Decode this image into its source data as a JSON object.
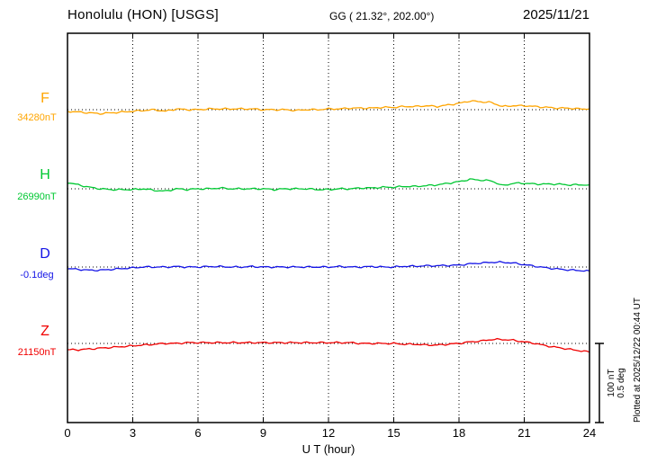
{
  "chart_data": {
    "type": "line",
    "title": "Honolulu (HON)  [USGS]",
    "subtitle": "GG ( 21.32°, 202.00°)",
    "date": "2025/11/21",
    "xlabel": "U T (hour)",
    "ylabel": "",
    "x_range": [
      0,
      24
    ],
    "x_ticks": [
      "0",
      "3",
      "6",
      "9",
      "12",
      "15",
      "18",
      "21",
      "24"
    ],
    "grid": "dotted vertical at 3h intervals, dotted horizontal at each trace baseline",
    "x_step_hours": 0.5,
    "scale": {
      "nT_per_div": 100,
      "deg_per_div": 0.5,
      "label_nT": "100 nT",
      "label_deg": "0.5 deg"
    },
    "plotted_at": "Plotted at 2025/12/22 00:44 UT",
    "series": [
      {
        "name": "F",
        "baseline_label": "34280nT",
        "baseline_value": 34280,
        "unit": "nT",
        "color": "#ffa500",
        "offsets": [
          -2,
          -3,
          -4,
          -5,
          -4,
          -3,
          -2,
          -1,
          0,
          -2,
          1,
          0,
          0,
          1,
          1,
          1,
          1,
          1,
          0,
          0,
          0,
          -1,
          0,
          0,
          1,
          1,
          2,
          2,
          2,
          3,
          3,
          4,
          4,
          5,
          4,
          6,
          8,
          11,
          10,
          9,
          4,
          5,
          5,
          4,
          3,
          2,
          2,
          1,
          1
        ]
      },
      {
        "name": "H",
        "baseline_label": "26990nT",
        "baseline_value": 26990,
        "unit": "nT",
        "color": "#00c832",
        "offsets": [
          8,
          5,
          2,
          0,
          -1,
          -1,
          -1,
          0,
          -2,
          -3,
          0,
          -1,
          0,
          0,
          1,
          0,
          0,
          0,
          0,
          -1,
          0,
          0,
          0,
          -1,
          -1,
          0,
          0,
          1,
          1,
          2,
          2,
          3,
          3,
          4,
          5,
          7,
          9,
          12,
          11,
          10,
          4,
          7,
          7,
          6,
          6,
          6,
          5,
          5,
          5
        ]
      },
      {
        "name": "D",
        "baseline_label": "-0.1deg",
        "baseline_value": -0.1,
        "unit": "deg",
        "color": "#1414e6",
        "offsets": [
          -0.01,
          -0.015,
          -0.02,
          -0.02,
          -0.015,
          -0.01,
          -0.005,
          0,
          0,
          0,
          0.003,
          0,
          0,
          0.003,
          0.003,
          0,
          0,
          0.003,
          0,
          0,
          0,
          0,
          0,
          0,
          0,
          0.003,
          0,
          0,
          0.003,
          0,
          0,
          0.005,
          0.005,
          0.008,
          0.008,
          0.01,
          0.012,
          0.02,
          0.025,
          0.03,
          0.03,
          0.025,
          0.015,
          0.005,
          -0.005,
          -0.012,
          -0.018,
          -0.022,
          -0.025
        ]
      },
      {
        "name": "Z",
        "baseline_label": "21150nT",
        "baseline_value": 21150,
        "unit": "nT",
        "color": "#f00000",
        "offsets": [
          -8,
          -8,
          -7,
          -6,
          -5,
          -4,
          -3,
          -2,
          -1,
          0,
          0,
          1,
          1,
          1,
          1,
          1,
          1,
          1,
          1,
          1,
          1,
          1,
          1,
          1,
          1,
          1,
          1,
          0,
          0,
          0,
          0,
          -1,
          -1,
          -2,
          -2,
          -1,
          0,
          2,
          3,
          5,
          5,
          4,
          2,
          0,
          -3,
          -5,
          -7,
          -9,
          -11
        ]
      }
    ]
  }
}
